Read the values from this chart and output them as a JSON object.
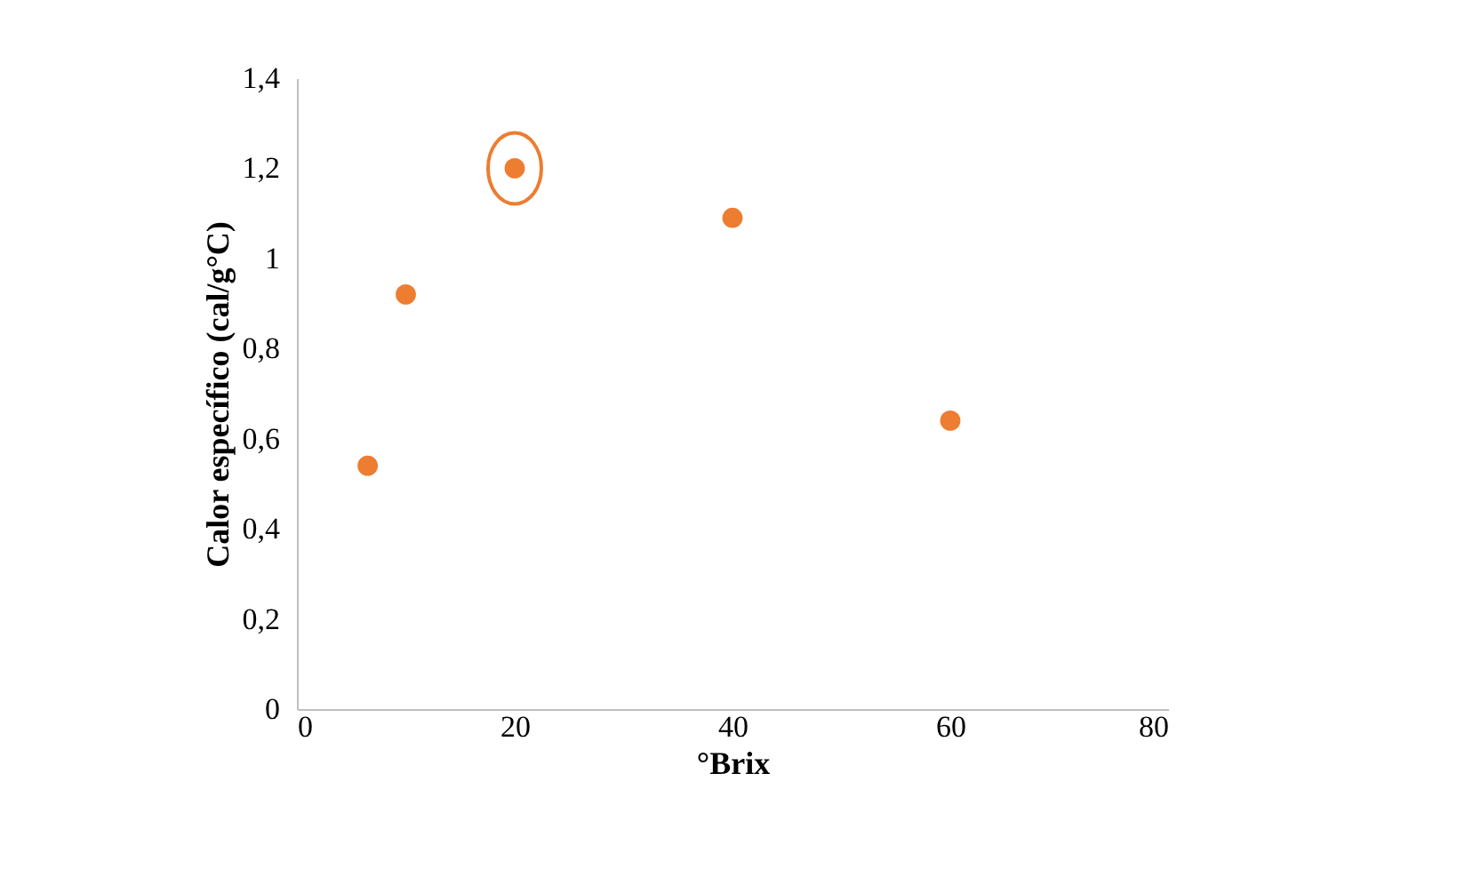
{
  "chart_data": {
    "type": "scatter",
    "xlabel": "°Brix",
    "ylabel": "Calor específico (cal/g°C)",
    "series": [
      {
        "color": "#ed7d31",
        "x": [
          6.5,
          10,
          20,
          40,
          60
        ],
        "values": [
          0.54,
          0.92,
          1.2,
          1.09,
          0.64
        ]
      },
      {
        "type": "bubble",
        "color": "#ed7d31",
        "x": [
          20
        ],
        "values": [
          1.2
        ],
        "sizes": [
          1
        ]
      }
    ],
    "xlim": [
      0,
      80
    ],
    "xticks": [
      0,
      20,
      40,
      60,
      80
    ],
    "ylim": [
      0,
      1.4
    ],
    "yticks": [
      0,
      {
        "value": 0.2,
        "label": "0,2"
      },
      {
        "value": 0.4,
        "label": "0,4"
      },
      {
        "value": 0.6,
        "label": "0,6"
      },
      {
        "value": 0.8,
        "label": "0,8"
      },
      1,
      {
        "value": 1.2,
        "label": "1,2"
      },
      {
        "value": 1.4,
        "label": "1,4"
      }
    ],
    "grid": false,
    "marker": "circle"
  }
}
